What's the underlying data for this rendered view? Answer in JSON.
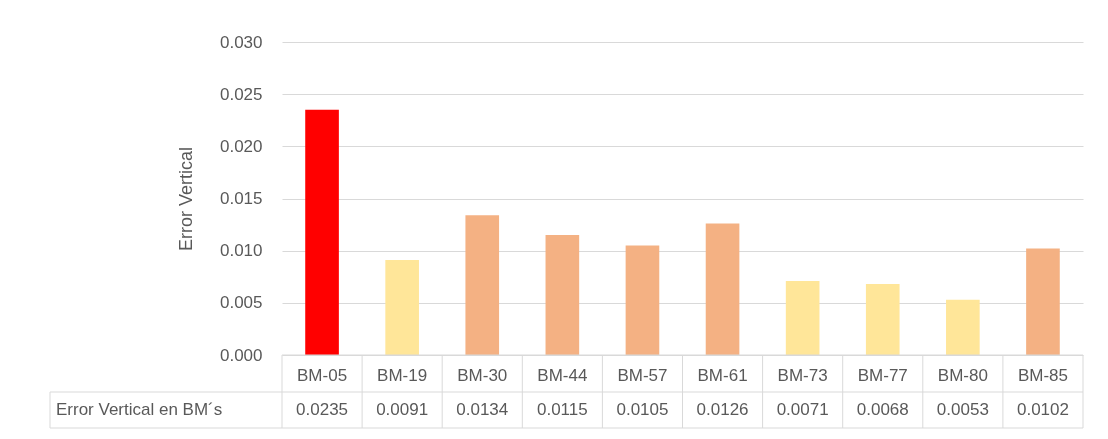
{
  "chart_data": {
    "type": "bar",
    "ylabel": "Error Vertical",
    "categories": [
      "BM-05",
      "BM-19",
      "BM-30",
      "BM-44",
      "BM-57",
      "BM-61",
      "BM-73",
      "BM-77",
      "BM-80",
      "BM-85"
    ],
    "series": [
      {
        "name": "Error Vertical en BM´s",
        "values": [
          0.0235,
          0.0091,
          0.0134,
          0.0115,
          0.0105,
          0.0126,
          0.0071,
          0.0068,
          0.0053,
          0.0102
        ]
      }
    ],
    "colors": [
      "#ff0000",
      "#ffe699",
      "#f4b183",
      "#f4b183",
      "#f4b183",
      "#f4b183",
      "#ffe699",
      "#ffe699",
      "#ffe699",
      "#f4b183"
    ],
    "ylim": [
      0,
      0.03
    ],
    "yticks": [
      {
        "value": 0,
        "label": "0.000"
      },
      {
        "value": 0.005,
        "label": "0.005"
      },
      {
        "value": 0.01,
        "label": "0.010"
      },
      {
        "value": 0.015,
        "label": "0.015"
      },
      {
        "value": 0.02,
        "label": "0.020"
      },
      {
        "value": 0.025,
        "label": "0.025"
      },
      {
        "value": 0.03,
        "label": "0.030"
      }
    ],
    "grid": "y",
    "data_labels": true
  }
}
